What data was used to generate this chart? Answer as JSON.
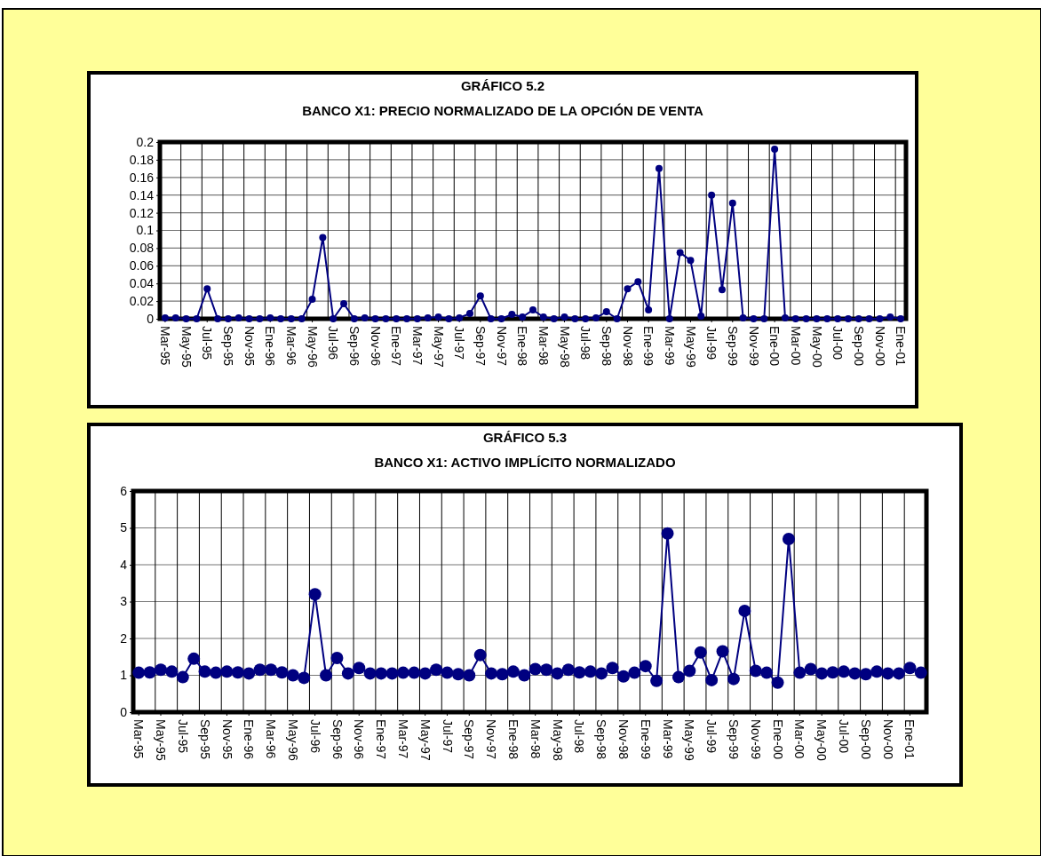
{
  "chart_data": [
    {
      "type": "line",
      "title": "GRÁFICO 5.2",
      "subtitle": "BANCO X1: PRECIO NORMALIZADO DE LA OPCIÓN DE VENTA",
      "categories": [
        "Mar-95",
        null,
        "May-95",
        null,
        "Jul-95",
        null,
        "Sep-95",
        null,
        "Nov-95",
        null,
        "Ene-96",
        null,
        "Mar-96",
        null,
        "May-96",
        null,
        "Jul-96",
        null,
        "Sep-96",
        null,
        "Nov-96",
        null,
        "Ene-97",
        null,
        "Mar-97",
        null,
        "May-97",
        null,
        "Jul-97",
        null,
        "Sep-97",
        null,
        "Nov-97",
        null,
        "Ene-98",
        null,
        "Mar-98",
        null,
        "May-98",
        null,
        "Jul-98",
        null,
        "Sep-98",
        null,
        "Nov-98",
        null,
        "Ene-99",
        null,
        "Mar-99",
        null,
        "May-99",
        null,
        "Jul-99",
        null,
        "Sep-99",
        null,
        "Nov-99",
        null,
        "Ene-00",
        null,
        "Mar-00",
        null,
        "May-00",
        null,
        "Jul-00",
        null,
        "Sep-00",
        null,
        "Nov-00",
        null,
        "Ene-01"
      ],
      "series": [
        {
          "color": "#000080",
          "values": [
            0.001,
            0.001,
            0,
            0,
            0.034,
            0,
            0,
            0.001,
            0,
            0,
            0.001,
            0,
            0,
            0,
            0.022,
            0.092,
            0,
            0.017,
            0,
            0.001,
            0,
            0,
            0,
            0,
            0,
            0.001,
            0.002,
            0,
            0.001,
            0.006,
            0.026,
            0,
            0,
            0.005,
            0.002,
            0.01,
            0.002,
            0,
            0.002,
            0,
            0,
            0.001,
            0.008,
            0,
            0.034,
            0.042,
            0.01,
            0.17,
            0,
            0.075,
            0.066,
            0.003,
            0.14,
            0.033,
            0.131,
            0.001,
            0,
            0,
            0.192,
            0.001,
            0,
            0,
            0,
            0,
            0,
            0,
            0,
            0,
            0,
            0.002,
            0
          ]
        }
      ],
      "ylim": [
        0,
        0.2
      ],
      "yticks": [
        0,
        0.02,
        0.04,
        0.06,
        0.08,
        0.1,
        0.12,
        0.14,
        0.16,
        0.18,
        0.2
      ],
      "grid": true,
      "marker": "circle",
      "line_style": "solid"
    },
    {
      "type": "line",
      "title": "GRÁFICO 5.3",
      "subtitle": "BANCO X1: ACTIVO IMPLÍCITO NORMALIZADO",
      "categories": [
        "Mar-95",
        null,
        "May-95",
        null,
        "Jul-95",
        null,
        "Sep-95",
        null,
        "Nov-95",
        null,
        "Ene-96",
        null,
        "Mar-96",
        null,
        "May-96",
        null,
        "Jul-96",
        null,
        "Sep-96",
        null,
        "Nov-96",
        null,
        "Ene-97",
        null,
        "Mar-97",
        null,
        "May-97",
        null,
        "Jul-97",
        null,
        "Sep-97",
        null,
        "Nov-97",
        null,
        "Ene-98",
        null,
        "Mar-98",
        null,
        "May-98",
        null,
        "Jul-98",
        null,
        "Sep-98",
        null,
        "Nov-98",
        null,
        "Ene-99",
        null,
        "Mar-99",
        null,
        "May-99",
        null,
        "Jul-99",
        null,
        "Sep-99",
        null,
        "Nov-99",
        null,
        "Ene-00",
        null,
        "Mar-00",
        null,
        "May-00",
        null,
        "Jul-00",
        null,
        "Sep-00",
        null,
        "Nov-00",
        null,
        "Ene-01",
        null
      ],
      "series": [
        {
          "color": "#000080",
          "values": [
            1.07,
            1.08,
            1.15,
            1.1,
            0.95,
            1.45,
            1.1,
            1.07,
            1.1,
            1.08,
            1.05,
            1.15,
            1.15,
            1.08,
            1.0,
            0.93,
            3.2,
            1.0,
            1.47,
            1.05,
            1.2,
            1.05,
            1.05,
            1.05,
            1.07,
            1.07,
            1.05,
            1.15,
            1.07,
            1.03,
            1.0,
            1.55,
            1.05,
            1.03,
            1.1,
            1.0,
            1.17,
            1.15,
            1.05,
            1.15,
            1.08,
            1.1,
            1.05,
            1.2,
            0.97,
            1.07,
            1.25,
            0.85,
            4.85,
            0.95,
            1.12,
            1.62,
            0.87,
            1.65,
            0.9,
            2.75,
            1.12,
            1.07,
            0.8,
            4.7,
            1.07,
            1.17,
            1.05,
            1.08,
            1.1,
            1.05,
            1.03,
            1.1,
            1.05,
            1.05,
            1.2,
            1.07
          ]
        }
      ],
      "ylim": [
        0,
        6
      ],
      "yticks": [
        0,
        1,
        2,
        3,
        4,
        5,
        6
      ],
      "grid": true,
      "marker": "circle",
      "line_style": "solid"
    }
  ]
}
